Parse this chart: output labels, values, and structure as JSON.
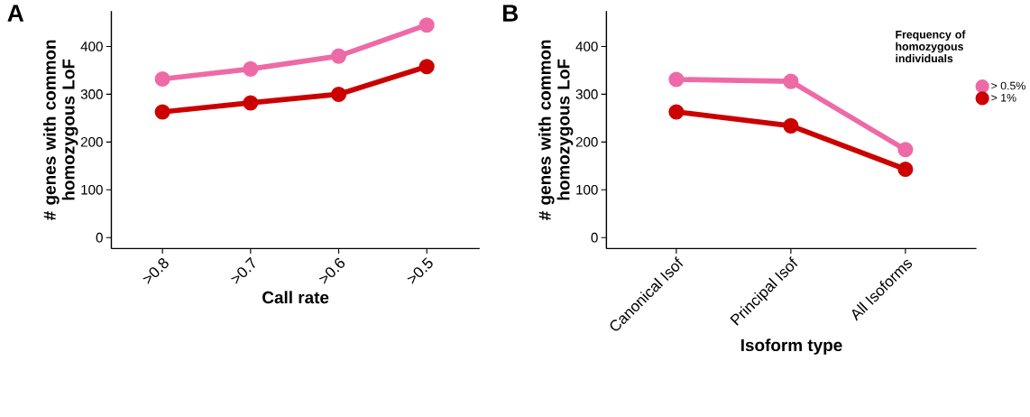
{
  "chart_data": [
    {
      "type": "line",
      "title": "A",
      "categories": [
        ">0.8",
        ">0.7",
        ">0.6",
        ">0.5"
      ],
      "xlabel": "Call rate",
      "ylabel": "# genes with common homozygous LoF",
      "ylim": [
        -23,
        474
      ],
      "yticks": [
        0,
        100,
        200,
        300,
        400
      ],
      "marker": "circle",
      "line_style": "solid",
      "grid": false,
      "legend": false,
      "series": [
        {
          "color": "#ee6aa7",
          "values": [
            332,
            353,
            380,
            445
          ]
        },
        {
          "color": "#cc0000",
          "values": [
            263,
            282,
            300,
            358
          ]
        }
      ]
    },
    {
      "type": "line",
      "title": "B",
      "categories": [
        "Canonical Isof",
        "Principal Isof",
        "All Isoforms"
      ],
      "xlabel": "Isoform type",
      "ylabel": "# genes with common homozygous LoF",
      "ylim": [
        -23,
        474
      ],
      "yticks": [
        0,
        100,
        200,
        300,
        400
      ],
      "marker": "circle",
      "line_style": "solid",
      "grid": false,
      "legend": "top right",
      "legend_title": "Frequency of homozygous individuals",
      "series": [
        {
          "name": "> 0.5%",
          "color": "#ee6aa7",
          "values": [
            331,
            327,
            184
          ]
        },
        {
          "name": "> 1%",
          "color": "#cc0000",
          "values": [
            263,
            234,
            143
          ]
        }
      ]
    }
  ]
}
